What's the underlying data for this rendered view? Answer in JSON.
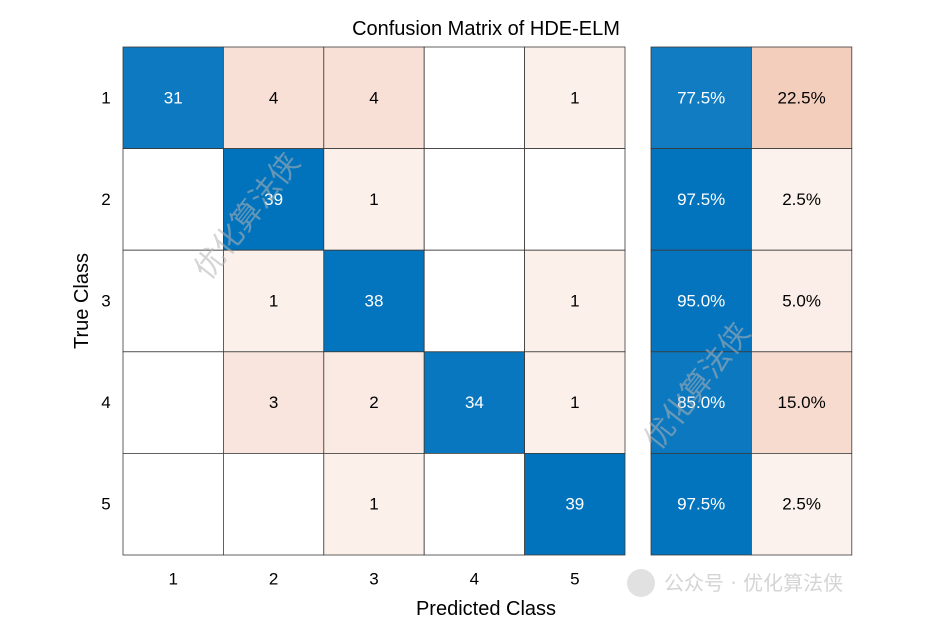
{
  "chart_data": {
    "type": "heatmap",
    "title": "Confusion Matrix of HDE-ELM",
    "xlabel": "Predicted Class",
    "ylabel": "True Class",
    "classes": [
      "1",
      "2",
      "3",
      "4",
      "5"
    ],
    "matrix": [
      [
        31,
        4,
        4,
        0,
        1
      ],
      [
        0,
        39,
        1,
        0,
        0
      ],
      [
        0,
        1,
        38,
        0,
        1
      ],
      [
        0,
        3,
        2,
        34,
        1
      ],
      [
        0,
        0,
        1,
        0,
        39
      ]
    ],
    "row_summary": [
      {
        "correct": "77.5%",
        "incorrect": "22.5%"
      },
      {
        "correct": "97.5%",
        "incorrect": "2.5%"
      },
      {
        "correct": "95.0%",
        "incorrect": "5.0%"
      },
      {
        "correct": "85.0%",
        "incorrect": "15.0%"
      },
      {
        "correct": "97.5%",
        "incorrect": "2.5%"
      }
    ],
    "colors": {
      "correct_max": "#0072bd",
      "error_max": "#d95319",
      "grid_line": "#3a3a3a",
      "background": "#ffffff"
    }
  },
  "watermark": {
    "text": "优化算法侠",
    "corner_text": "公众号 · 优化算法侠"
  }
}
